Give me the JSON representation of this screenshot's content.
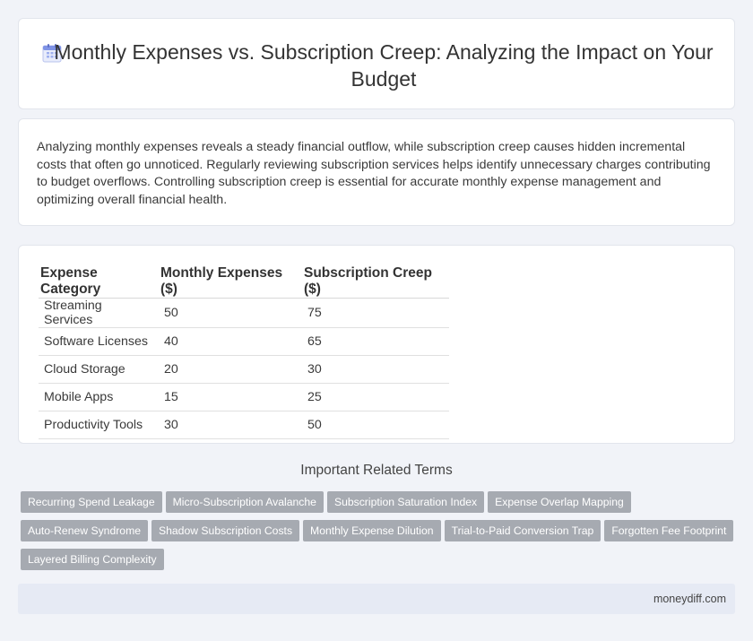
{
  "header": {
    "icon": "calendar-icon",
    "title": "Monthly Expenses vs. Subscription Creep: Analyzing the Impact on Your Budget"
  },
  "description": "Analyzing monthly expenses reveals a steady financial outflow, while subscription creep causes hidden incremental costs that often go unnoticed. Regularly reviewing subscription services helps identify unnecessary charges contributing to budget overflows. Controlling subscription creep is essential for accurate monthly expense management and optimizing overall financial health.",
  "table": {
    "headers": [
      "Expense Category",
      "Monthly Expenses ($)",
      "Subscription Creep ($)"
    ],
    "rows": [
      [
        "Streaming Services",
        "50",
        "75"
      ],
      [
        "Software Licenses",
        "40",
        "65"
      ],
      [
        "Cloud Storage",
        "20",
        "30"
      ],
      [
        "Mobile Apps",
        "15",
        "25"
      ],
      [
        "Productivity Tools",
        "30",
        "50"
      ]
    ]
  },
  "terms": {
    "heading": "Important Related Terms",
    "items": [
      "Recurring Spend Leakage",
      "Micro-Subscription Avalanche",
      "Subscription Saturation Index",
      "Expense Overlap Mapping",
      "Auto-Renew Syndrome",
      "Shadow Subscription Costs",
      "Monthly Expense Dilution",
      "Trial-to-Paid Conversion Trap",
      "Forgotten Fee Footprint",
      "Layered Billing Complexity"
    ]
  },
  "footer": {
    "brand": "moneydiff.com"
  }
}
